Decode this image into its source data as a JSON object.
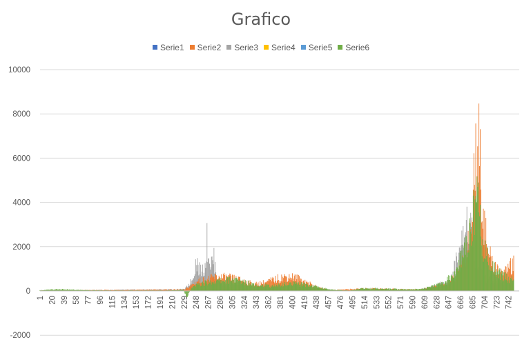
{
  "chart_data": {
    "type": "bar",
    "title": "Grafico",
    "xlabel": "",
    "ylabel": "",
    "ylim": [
      -2000,
      10000
    ],
    "y_ticks": [
      -2000,
      0,
      2000,
      4000,
      6000,
      8000,
      10000
    ],
    "x_tick_labels": [
      "1",
      "20",
      "39",
      "58",
      "77",
      "96",
      "115",
      "134",
      "153",
      "172",
      "191",
      "210",
      "229",
      "248",
      "267",
      "286",
      "305",
      "324",
      "343",
      "362",
      "381",
      "400",
      "419",
      "438",
      "457",
      "476",
      "495",
      "514",
      "533",
      "552",
      "571",
      "590",
      "609",
      "628",
      "647",
      "666",
      "685",
      "704",
      "723",
      "742"
    ],
    "x_range": [
      1,
      750
    ],
    "grid": true,
    "legend_position": "top",
    "series": [
      {
        "name": "Serie1",
        "color": "#4472C4",
        "x": [
          1,
          300,
          500,
          700
        ],
        "values": [
          0,
          0,
          0,
          0
        ]
      },
      {
        "name": "Serie2",
        "color": "#ED7D31",
        "x": [
          1,
          230,
          250,
          265,
          280,
          300,
          320,
          340,
          360,
          380,
          395,
          410,
          425,
          440,
          460,
          520,
          600,
          640,
          660,
          675,
          685,
          690,
          694,
          698,
          702,
          708,
          716,
          725,
          735,
          745
        ],
        "values": [
          30,
          80,
          600,
          700,
          850,
          800,
          650,
          400,
          550,
          800,
          900,
          750,
          500,
          200,
          50,
          150,
          80,
          350,
          900,
          2500,
          5000,
          8600,
          9100,
          7500,
          4800,
          2600,
          1700,
          1300,
          1000,
          1600
        ]
      },
      {
        "name": "Serie3",
        "color": "#A5A5A5",
        "x": [
          1,
          230,
          242,
          248,
          255,
          262,
          265,
          270,
          276,
          282,
          295,
          320,
          350,
          400,
          440,
          470,
          600,
          650,
          670,
          678,
          683,
          688,
          695,
          705,
          720,
          745
        ],
        "values": [
          20,
          100,
          700,
          1900,
          1200,
          1500,
          3100,
          1700,
          1950,
          600,
          300,
          300,
          250,
          300,
          150,
          30,
          40,
          600,
          3200,
          4500,
          4000,
          2000,
          1200,
          800,
          600,
          500
        ]
      },
      {
        "name": "Serie4",
        "color": "#FFC000",
        "x": [
          1,
          300,
          500,
          700
        ],
        "values": [
          0,
          0,
          0,
          0
        ]
      },
      {
        "name": "Serie5",
        "color": "#5B9BD5",
        "x": [
          1,
          300,
          500,
          700
        ],
        "values": [
          0,
          0,
          0,
          0
        ]
      },
      {
        "name": "Serie6",
        "color": "#70AD47",
        "x": [
          1,
          30,
          60,
          100,
          200,
          228,
          233,
          240,
          250,
          270,
          290,
          305,
          330,
          350,
          370,
          395,
          420,
          440,
          460,
          490,
          510,
          530,
          560,
          600,
          620,
          640,
          660,
          675,
          685,
          690,
          696,
          700,
          706,
          712,
          720,
          730,
          740,
          748
        ],
        "values": [
          40,
          100,
          60,
          30,
          30,
          60,
          -400,
          150,
          400,
          550,
          650,
          700,
          500,
          350,
          300,
          450,
          400,
          250,
          80,
          20,
          150,
          150,
          120,
          100,
          250,
          500,
          1200,
          3000,
          4300,
          6100,
          5000,
          2600,
          2300,
          1800,
          1400,
          1000,
          800,
          700
        ]
      }
    ]
  }
}
